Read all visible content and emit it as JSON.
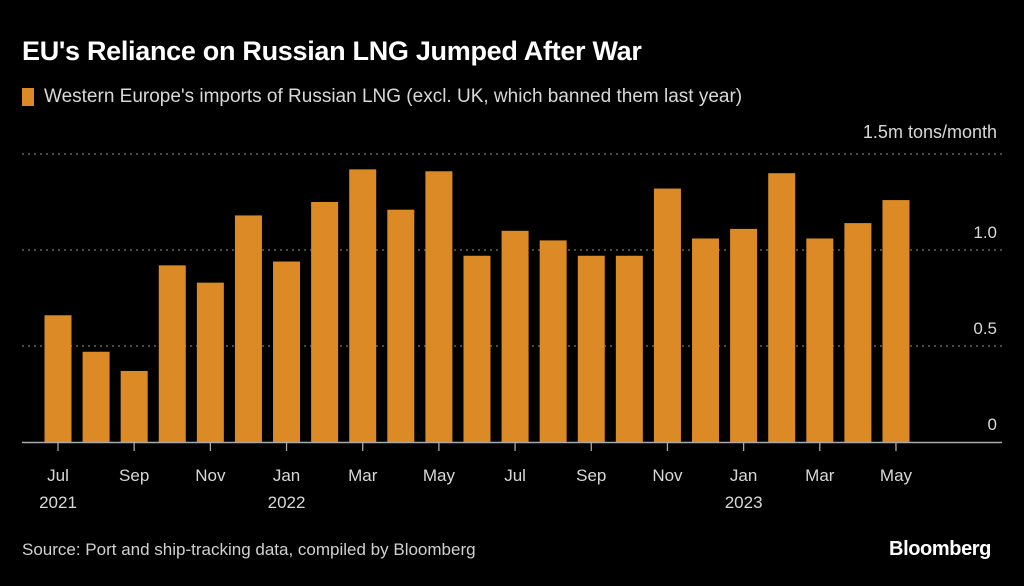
{
  "title": "EU's Reliance on Russian LNG Jumped After War",
  "legend_label": "Western Europe's imports of Russian LNG (excl. UK, which banned them last year)",
  "unit_label": "1.5m tons/month",
  "source": "Source: Port and ship-tracking data, compiled by Bloomberg",
  "brand": "Bloomberg",
  "colors": {
    "bar": "#dc8a25",
    "background": "#000000",
    "grid": "#777777",
    "axis": "#aaaaaa"
  },
  "chart_data": {
    "type": "bar",
    "title": "EU's Reliance on Russian LNG Jumped After War",
    "xlabel": "",
    "ylabel": "m tons/month",
    "ylim": [
      0,
      1.5
    ],
    "yticks": [
      0,
      0.5,
      1.0,
      1.5
    ],
    "ytick_labels": [
      "0",
      "0.5",
      "1.0",
      "1.5m tons/month"
    ],
    "grid": true,
    "legend": "top-left",
    "categories": [
      "Jul 2021",
      "Aug 2021",
      "Sep 2021",
      "Oct 2021",
      "Nov 2021",
      "Dec 2021",
      "Jan 2022",
      "Feb 2022",
      "Mar 2022",
      "Apr 2022",
      "May 2022",
      "Jun 2022",
      "Jul 2022",
      "Aug 2022",
      "Sep 2022",
      "Oct 2022",
      "Nov 2022",
      "Dec 2022",
      "Jan 2023",
      "Feb 2023",
      "Mar 2023",
      "Apr 2023",
      "May 2023"
    ],
    "series": [
      {
        "name": "Western Europe's imports of Russian LNG (excl. UK, which banned them last year)",
        "values": [
          0.66,
          0.47,
          0.37,
          0.92,
          0.83,
          1.18,
          0.94,
          1.25,
          1.42,
          1.21,
          1.41,
          0.97,
          1.1,
          1.05,
          0.97,
          0.97,
          1.32,
          1.06,
          1.11,
          1.4,
          1.06,
          1.14,
          1.26
        ]
      }
    ],
    "x_tick_labels": [
      {
        "index": 0,
        "month": "Jul",
        "year": "2021"
      },
      {
        "index": 2,
        "month": "Sep",
        "year": ""
      },
      {
        "index": 4,
        "month": "Nov",
        "year": ""
      },
      {
        "index": 6,
        "month": "Jan",
        "year": "2022"
      },
      {
        "index": 8,
        "month": "Mar",
        "year": ""
      },
      {
        "index": 10,
        "month": "May",
        "year": ""
      },
      {
        "index": 12,
        "month": "Jul",
        "year": ""
      },
      {
        "index": 14,
        "month": "Sep",
        "year": ""
      },
      {
        "index": 16,
        "month": "Nov",
        "year": ""
      },
      {
        "index": 18,
        "month": "Jan",
        "year": "2023"
      },
      {
        "index": 20,
        "month": "Mar",
        "year": ""
      },
      {
        "index": 22,
        "month": "May",
        "year": ""
      }
    ]
  }
}
